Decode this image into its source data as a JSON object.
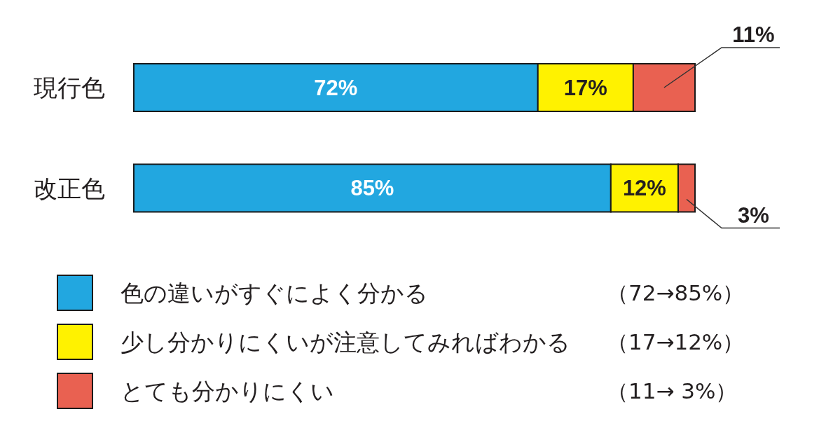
{
  "chart_data": {
    "type": "bar",
    "orientation": "horizontal",
    "stacked": true,
    "categories": [
      "現行色",
      "改正色"
    ],
    "series": [
      {
        "name": "色の違いがすぐによく分かる",
        "color": "#22a7e0",
        "values": [
          72,
          85
        ],
        "value_labels": [
          "72%",
          "85%"
        ]
      },
      {
        "name": "少し分かりにくいが注意してみればわかる",
        "color": "#fff200",
        "values": [
          17,
          12
        ],
        "value_labels": [
          "17%",
          "12%"
        ]
      },
      {
        "name": "とても分かりにくい",
        "color": "#e96151",
        "values": [
          11,
          3
        ],
        "value_labels": [
          "11%",
          "3%"
        ]
      }
    ],
    "legend": "bottom",
    "annotations": [
      "（72→85%）",
      "（17→12%）",
      "（11→ 3%）"
    ]
  }
}
